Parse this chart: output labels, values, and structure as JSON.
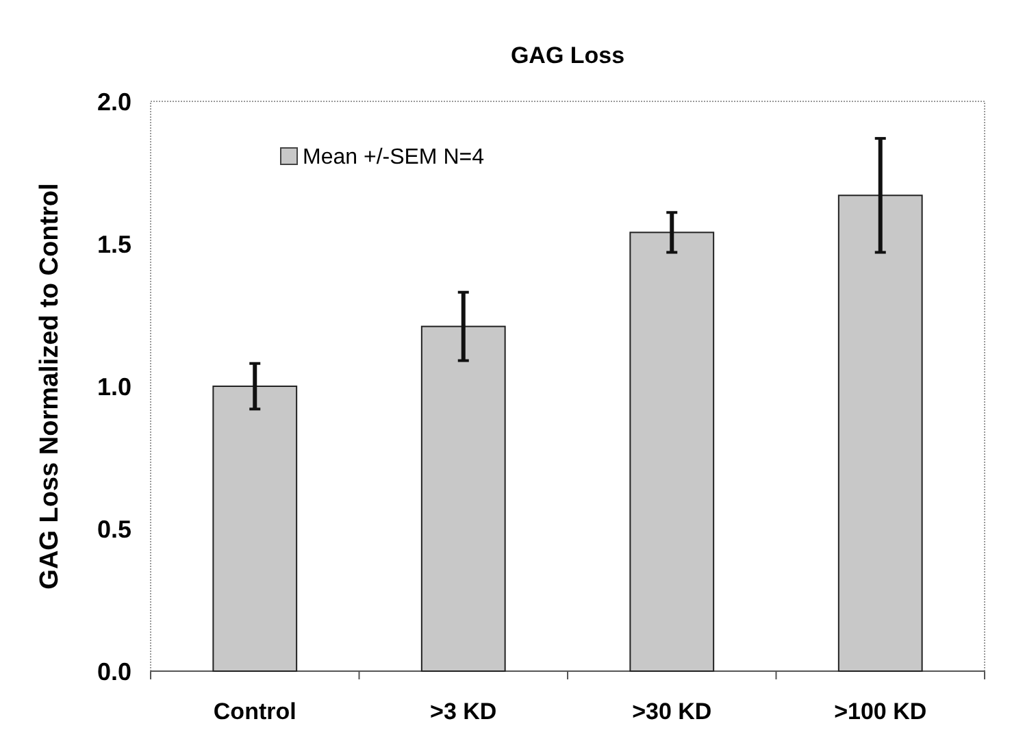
{
  "chart_data": {
    "type": "bar",
    "title": "GAG Loss",
    "ylabel": "GAG Loss  Normalized to Control",
    "categories": [
      "Control",
      ">3 KD",
      ">30 KD",
      ">100 KD"
    ],
    "series": [
      {
        "name": "Mean +/-SEM N=4",
        "color": "#c8c8c8",
        "values": [
          1.0,
          1.21,
          1.54,
          1.67
        ],
        "errors": [
          0.08,
          0.12,
          0.07,
          0.2
        ]
      }
    ],
    "ylim": [
      0,
      2
    ],
    "yticks": [
      {
        "value": 0,
        "label": "0.0"
      },
      {
        "value": 0.5,
        "label": "0.5"
      },
      {
        "value": 1,
        "label": "1.0"
      },
      {
        "value": 1.5,
        "label": "1.5"
      },
      {
        "value": 2,
        "label": "2.0"
      }
    ],
    "grid": false,
    "legend": "top left"
  }
}
